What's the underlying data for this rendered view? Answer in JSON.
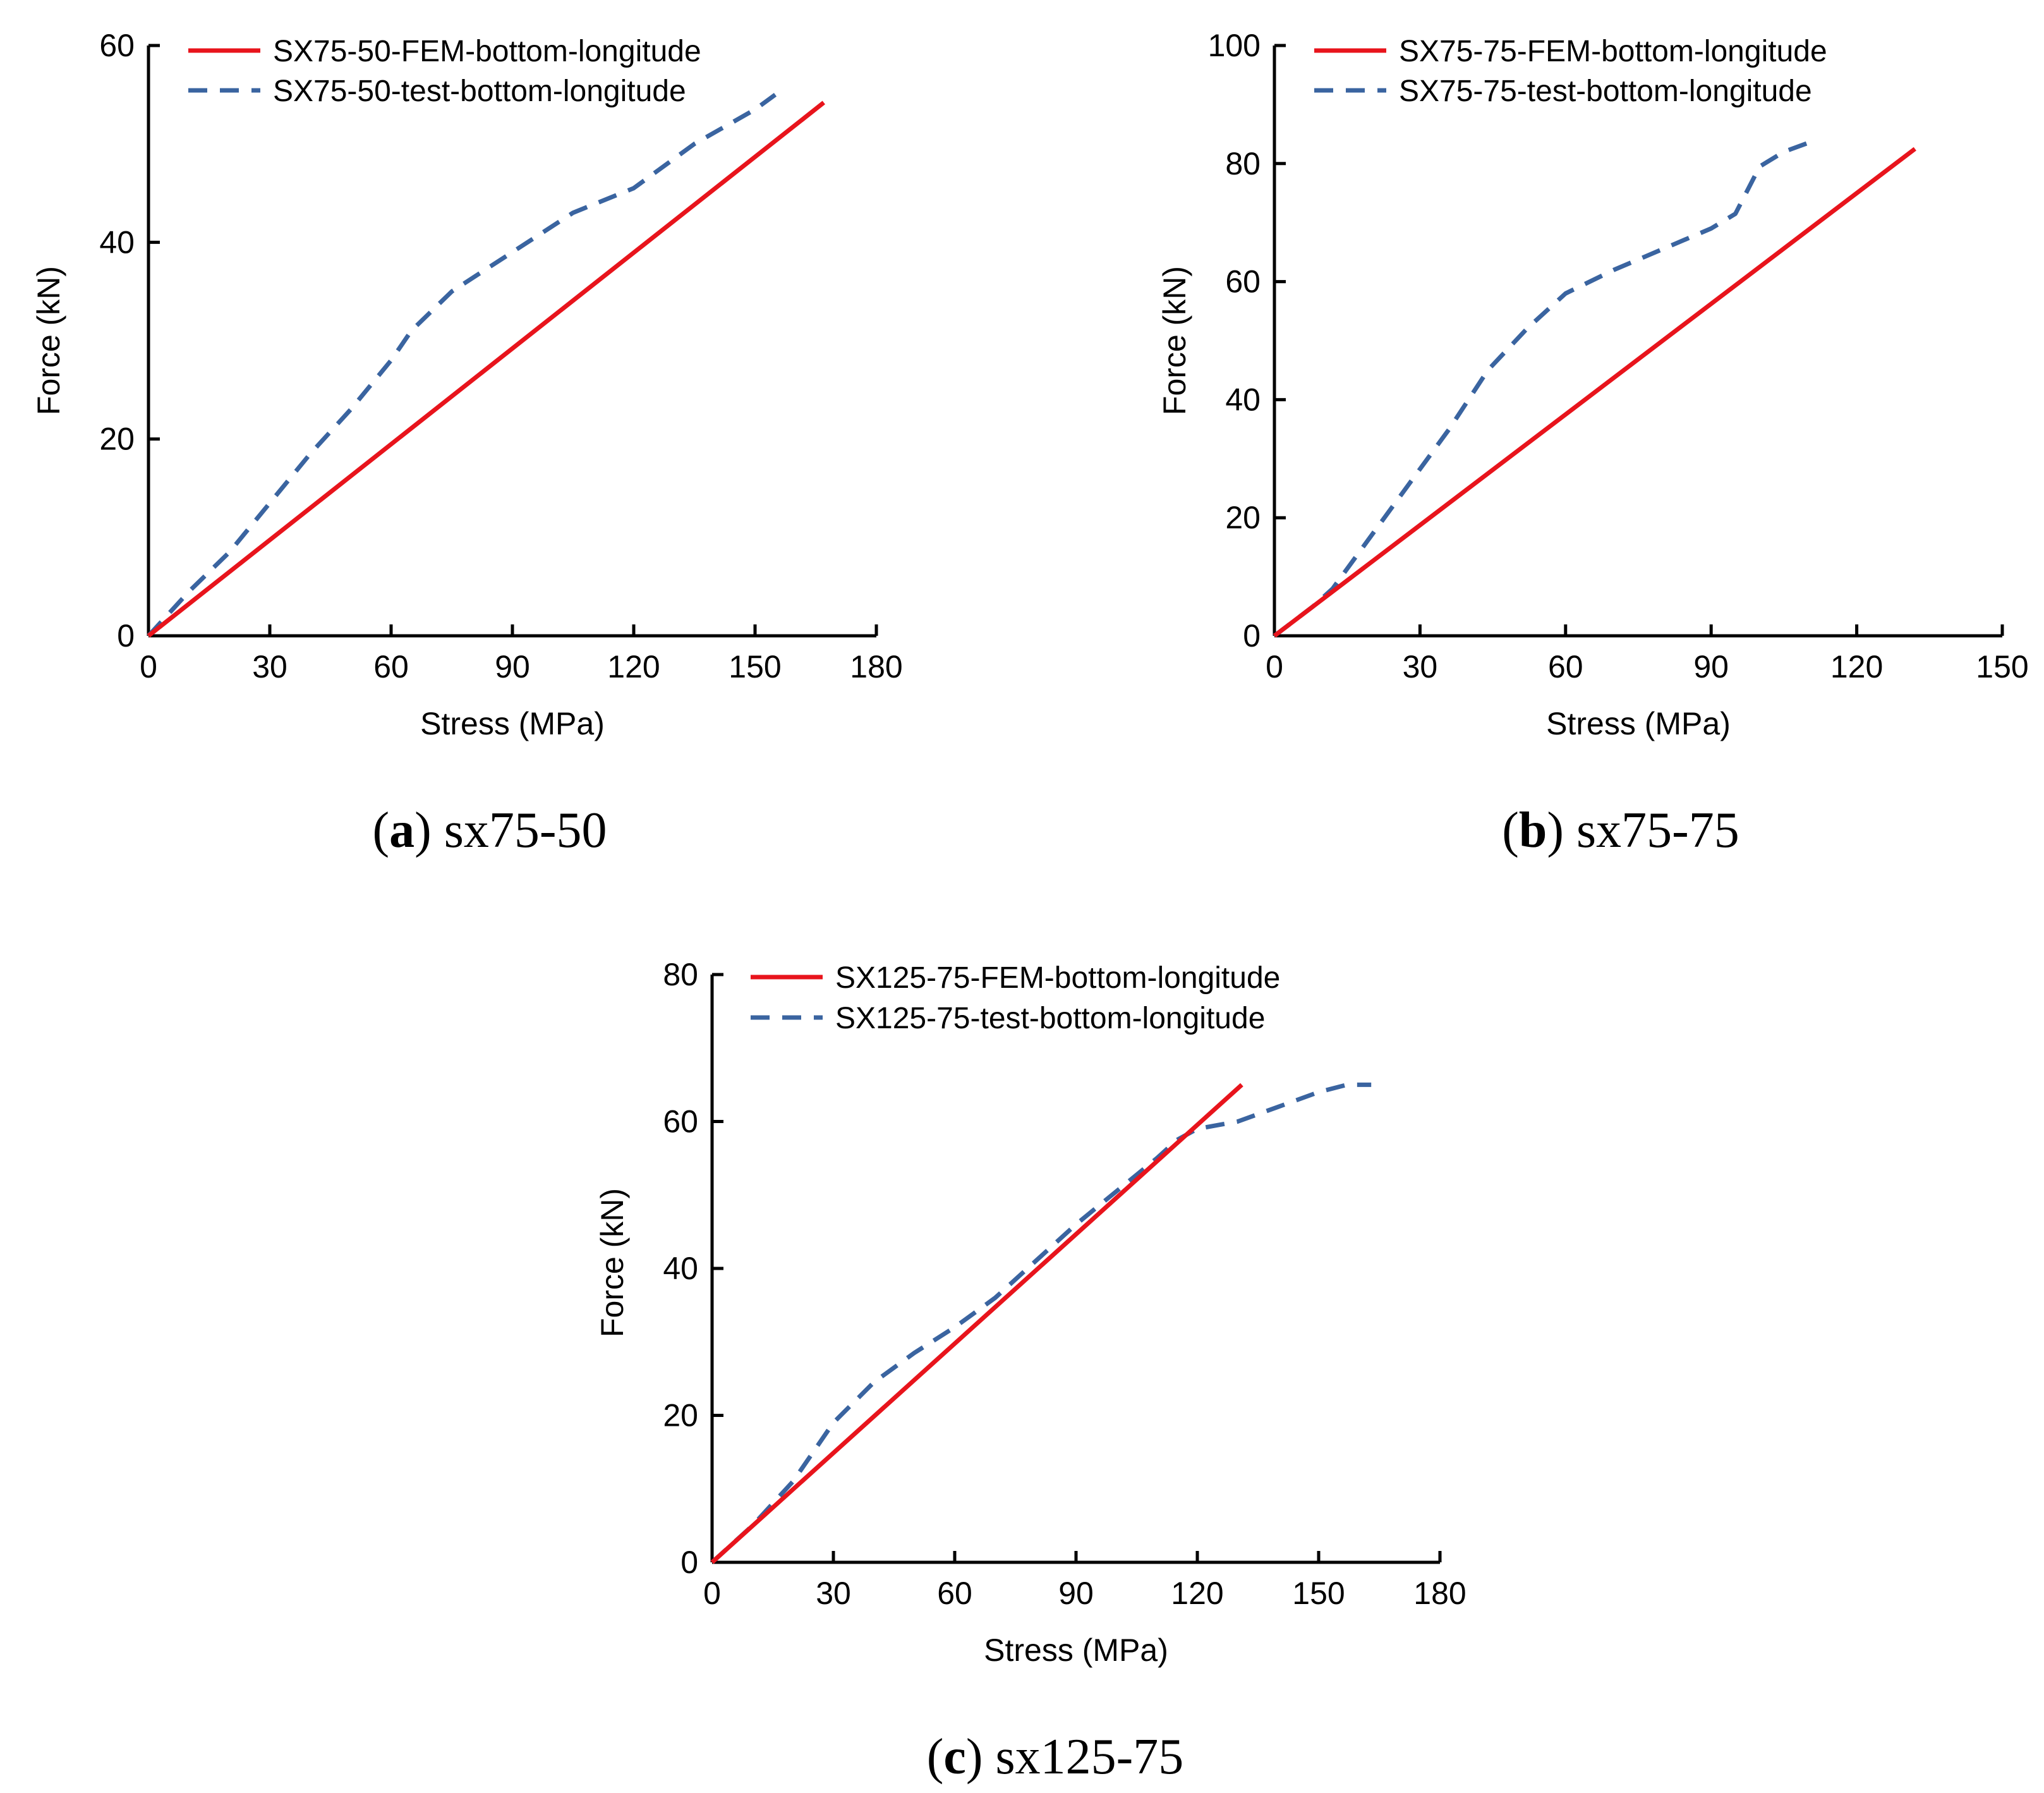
{
  "chart_data": [
    {
      "type": "line",
      "caption": {
        "letter": "a",
        "text": "sx75-50"
      },
      "xlabel": "Stress (MPa)",
      "ylabel": "Force (kN)",
      "xlim": [
        0,
        180
      ],
      "ylim": [
        0,
        60
      ],
      "xticks": [
        0,
        30,
        60,
        90,
        120,
        150,
        180
      ],
      "yticks": [
        0,
        20,
        40,
        60
      ],
      "legend_position": "top-right",
      "series": [
        {
          "name": "SX75-50-FEM-bottom-longitude",
          "style": "solid",
          "color": "#e8141c",
          "x": [
            0,
            167
          ],
          "y": [
            0,
            54.2
          ]
        },
        {
          "name": "SX75-50-test-bottom-longitude",
          "style": "dashed",
          "color": "#3a64a0",
          "x": [
            0,
            10,
            20,
            30,
            40,
            50,
            60,
            65,
            75,
            90,
            105,
            120,
            135,
            150,
            155
          ],
          "y": [
            0,
            4.5,
            8.5,
            13.5,
            18.5,
            23,
            28,
            31,
            35,
            39,
            43,
            45.5,
            50,
            53.5,
            55
          ]
        }
      ]
    },
    {
      "type": "line",
      "caption": {
        "letter": "b",
        "text": "sx75-75"
      },
      "xlabel": "Stress (MPa)",
      "ylabel": "Force (kN)",
      "xlim": [
        0,
        150
      ],
      "ylim": [
        0,
        100
      ],
      "xticks": [
        0,
        30,
        60,
        90,
        120,
        150
      ],
      "yticks": [
        0,
        20,
        40,
        60,
        80,
        100
      ],
      "legend_position": "top-right",
      "series": [
        {
          "name": "SX75-75-FEM-bottom-longitude",
          "style": "solid",
          "color": "#e8141c",
          "x": [
            0,
            132
          ],
          "y": [
            0,
            82.5
          ]
        },
        {
          "name": "SX75-75-test-bottom-longitude",
          "style": "dashed",
          "color": "#3a64a0",
          "x": [
            0,
            8,
            12,
            20,
            28,
            36,
            44,
            52,
            60,
            70,
            80,
            90,
            95,
            100,
            105,
            110
          ],
          "y": [
            0,
            5,
            8,
            17,
            26,
            35,
            45,
            52,
            58,
            62,
            65.5,
            69,
            71.5,
            79.5,
            82,
            83.5
          ]
        }
      ]
    },
    {
      "type": "line",
      "caption": {
        "letter": "c",
        "text": "sx125-75"
      },
      "xlabel": "Stress (MPa)",
      "ylabel": "Force (kN)",
      "xlim": [
        0,
        180
      ],
      "ylim": [
        0,
        80
      ],
      "xticks": [
        0,
        30,
        60,
        90,
        120,
        150,
        180
      ],
      "yticks": [
        0,
        20,
        40,
        60,
        80
      ],
      "legend_position": "top-right",
      "series": [
        {
          "name": "SX125-75-FEM-bottom-longitude",
          "style": "solid",
          "color": "#e8141c",
          "x": [
            0,
            131
          ],
          "y": [
            0,
            65
          ]
        },
        {
          "name": "SX125-75-test-bottom-longitude",
          "style": "dashed",
          "color": "#3a64a0",
          "x": [
            0,
            10,
            20,
            30,
            40,
            50,
            60,
            70,
            80,
            90,
            100,
            110,
            115,
            120,
            130,
            140,
            150,
            157,
            163
          ],
          "y": [
            0,
            5,
            11,
            19,
            24.5,
            28.5,
            32,
            36,
            41,
            46,
            50.5,
            55,
            57.5,
            59,
            60,
            62,
            64,
            65,
            65
          ]
        }
      ]
    }
  ]
}
